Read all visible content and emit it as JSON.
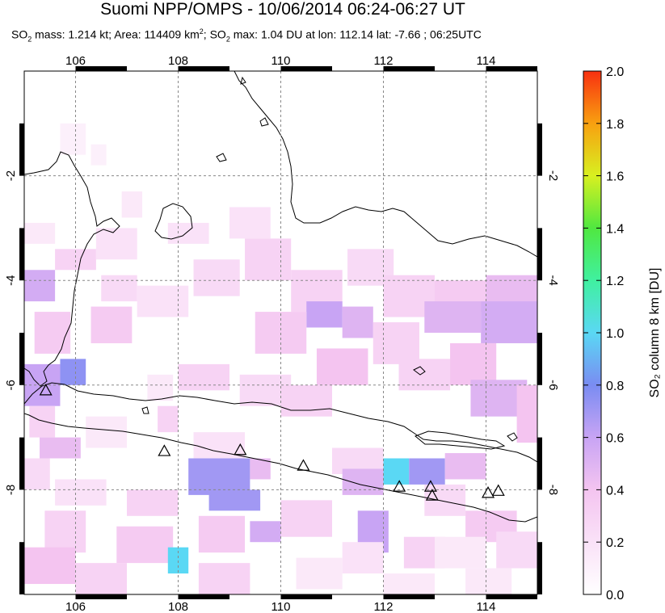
{
  "header": {
    "title": "Suomi NPP/OMPS - 10/06/2014 06:24-06:27 UT",
    "subtitle": {
      "mass_prefix": "SO",
      "mass_sub": "2",
      "mass_text": " mass: 1.214 kt; Area: 114409 km",
      "area_sup": "2",
      "max_prefix": "; SO",
      "max_sub": "2",
      "max_text": " max: 1.04 DU at lon: 112.14 lat: -7.66 ; 06:25UTC"
    }
  },
  "map": {
    "lon_range": [
      105,
      115
    ],
    "lat_range": [
      -10,
      0
    ],
    "lon_ticks": [
      "106",
      "108",
      "110",
      "112",
      "114"
    ],
    "lat_ticks": [
      "-2",
      "-4",
      "-6",
      "-8"
    ],
    "volcano_icon": "triangle-volcano-icon",
    "volcanoes": [
      {
        "lon": 105.42,
        "lat": -6.1
      },
      {
        "lon": 107.73,
        "lat": -7.26
      },
      {
        "lon": 109.21,
        "lat": -7.24
      },
      {
        "lon": 110.44,
        "lat": -7.54
      },
      {
        "lon": 112.31,
        "lat": -7.94
      },
      {
        "lon": 112.92,
        "lat": -7.94
      },
      {
        "lon": 112.95,
        "lat": -8.11
      },
      {
        "lon": 114.04,
        "lat": -8.06
      },
      {
        "lon": 114.24,
        "lat": -8.02
      }
    ]
  },
  "colorbar": {
    "label": "SO₂ column 8 km [DU]",
    "ticks": [
      "0.0",
      "0.2",
      "0.4",
      "0.6",
      "0.8",
      "1.0",
      "1.2",
      "1.4",
      "1.6",
      "1.8",
      "2.0"
    ],
    "range": [
      0,
      2
    ]
  },
  "so2_cells": [
    [
      105.0,
      -3.8,
      105.6,
      -4.4,
      0.55
    ],
    [
      105.2,
      -4.6,
      105.9,
      -5.4,
      0.35
    ],
    [
      105.0,
      -5.6,
      105.7,
      -6.4,
      0.6
    ],
    [
      105.7,
      -5.5,
      106.2,
      -6.0,
      0.75
    ],
    [
      105.1,
      -6.4,
      105.6,
      -7.0,
      0.3
    ],
    [
      105.3,
      -7.0,
      106.1,
      -7.4,
      0.45
    ],
    [
      105.0,
      -7.4,
      105.5,
      -8.0,
      0.25
    ],
    [
      105.6,
      -3.4,
      106.4,
      -3.8,
      0.3
    ],
    [
      106.4,
      -3.0,
      107.2,
      -3.6,
      0.2
    ],
    [
      106.5,
      -3.9,
      107.2,
      -4.4,
      0.25
    ],
    [
      106.3,
      -4.5,
      107.1,
      -5.2,
      0.35
    ],
    [
      107.2,
      -4.1,
      108.2,
      -4.7,
      0.2
    ],
    [
      108.3,
      -3.6,
      109.2,
      -4.3,
      0.25
    ],
    [
      109.3,
      -3.2,
      110.2,
      -4.0,
      0.3
    ],
    [
      110.2,
      -3.8,
      111.2,
      -4.6,
      0.3
    ],
    [
      111.3,
      -3.4,
      112.2,
      -4.1,
      0.25
    ],
    [
      112.0,
      -3.9,
      113.0,
      -4.7,
      0.3
    ],
    [
      113.0,
      -4.0,
      114.0,
      -4.6,
      0.35
    ],
    [
      114.0,
      -3.9,
      115.0,
      -4.7,
      0.45
    ],
    [
      112.8,
      -4.4,
      113.9,
      -5.0,
      0.5
    ],
    [
      113.9,
      -4.4,
      115.0,
      -5.2,
      0.55
    ],
    [
      110.5,
      -4.4,
      111.2,
      -4.9,
      0.6
    ],
    [
      111.2,
      -4.5,
      111.8,
      -5.1,
      0.5
    ],
    [
      109.5,
      -4.6,
      110.5,
      -5.4,
      0.35
    ],
    [
      111.8,
      -4.8,
      112.7,
      -5.6,
      0.3
    ],
    [
      110.7,
      -5.3,
      111.7,
      -6.0,
      0.4
    ],
    [
      112.3,
      -5.5,
      113.3,
      -6.1,
      0.3
    ],
    [
      113.3,
      -5.2,
      114.2,
      -6.0,
      0.4
    ],
    [
      113.7,
      -5.9,
      114.8,
      -6.6,
      0.5
    ],
    [
      114.6,
      -6.0,
      115.0,
      -7.1,
      0.4
    ],
    [
      108.0,
      -5.6,
      109.0,
      -6.1,
      0.3
    ],
    [
      109.2,
      -5.8,
      110.2,
      -6.4,
      0.25
    ],
    [
      110.0,
      -6.0,
      111.0,
      -6.6,
      0.3
    ],
    [
      107.6,
      -6.4,
      108.0,
      -6.9,
      0.3
    ],
    [
      108.3,
      -6.9,
      109.3,
      -7.4,
      0.2
    ],
    [
      111.0,
      -7.2,
      112.0,
      -7.7,
      0.25
    ],
    [
      108.2,
      -7.4,
      109.4,
      -8.1,
      0.7
    ],
    [
      108.6,
      -8.0,
      109.6,
      -8.4,
      0.7
    ],
    [
      109.4,
      -7.4,
      109.8,
      -7.8,
      0.45
    ],
    [
      112.0,
      -7.4,
      112.5,
      -7.9,
      1.0
    ],
    [
      112.5,
      -7.4,
      113.2,
      -7.9,
      0.7
    ],
    [
      111.2,
      -7.6,
      112.0,
      -8.1,
      0.5
    ],
    [
      113.2,
      -7.3,
      114.0,
      -7.8,
      0.45
    ],
    [
      111.5,
      -8.4,
      112.1,
      -9.2,
      0.6
    ],
    [
      110.0,
      -8.2,
      111.0,
      -8.9,
      0.3
    ],
    [
      109.4,
      -8.6,
      110.0,
      -9.0,
      0.55
    ],
    [
      108.4,
      -8.5,
      109.3,
      -9.2,
      0.35
    ],
    [
      106.8,
      -8.7,
      107.9,
      -9.4,
      0.35
    ],
    [
      107.8,
      -9.1,
      108.2,
      -9.6,
      1.0
    ],
    [
      105.4,
      -8.4,
      106.2,
      -9.2,
      0.3
    ],
    [
      105.0,
      -9.1,
      106.0,
      -9.8,
      0.4
    ],
    [
      106.0,
      -9.4,
      107.0,
      -10.0,
      0.3
    ],
    [
      108.4,
      -9.4,
      109.4,
      -10.0,
      0.3
    ],
    [
      112.4,
      -8.9,
      113.2,
      -9.5,
      0.3
    ],
    [
      113.6,
      -8.4,
      114.6,
      -9.0,
      0.35
    ],
    [
      111.2,
      -9.0,
      112.0,
      -9.6,
      0.2
    ],
    [
      112.0,
      -9.6,
      113.0,
      -10.0,
      0.15
    ],
    [
      107.0,
      -8.0,
      108.0,
      -8.5,
      0.3
    ],
    [
      105.6,
      -7.8,
      106.6,
      -8.3,
      0.2
    ],
    [
      113.0,
      -8.9,
      114.0,
      -9.5,
      0.15
    ],
    [
      114.2,
      -8.8,
      115.0,
      -9.5,
      0.25
    ],
    [
      110.3,
      -9.3,
      111.2,
      -9.9,
      0.15
    ],
    [
      113.6,
      -9.5,
      114.5,
      -10.0,
      0.15
    ],
    [
      106.2,
      -6.6,
      107.0,
      -7.2,
      0.15
    ],
    [
      107.4,
      -5.8,
      107.9,
      -6.3,
      0.15
    ],
    [
      112.8,
      -7.9,
      113.6,
      -8.5,
      0.25
    ],
    [
      109.0,
      -2.6,
      109.8,
      -3.2,
      0.2
    ],
    [
      107.8,
      -2.9,
      108.6,
      -3.3,
      0.2
    ],
    [
      105.7,
      -1.0,
      106.2,
      -1.6,
      0.1
    ],
    [
      106.3,
      -1.4,
      106.6,
      -1.8,
      0.1
    ],
    [
      106.9,
      -2.3,
      107.3,
      -2.8,
      0.15
    ],
    [
      105.0,
      -2.9,
      105.6,
      -3.3,
      0.15
    ]
  ]
}
